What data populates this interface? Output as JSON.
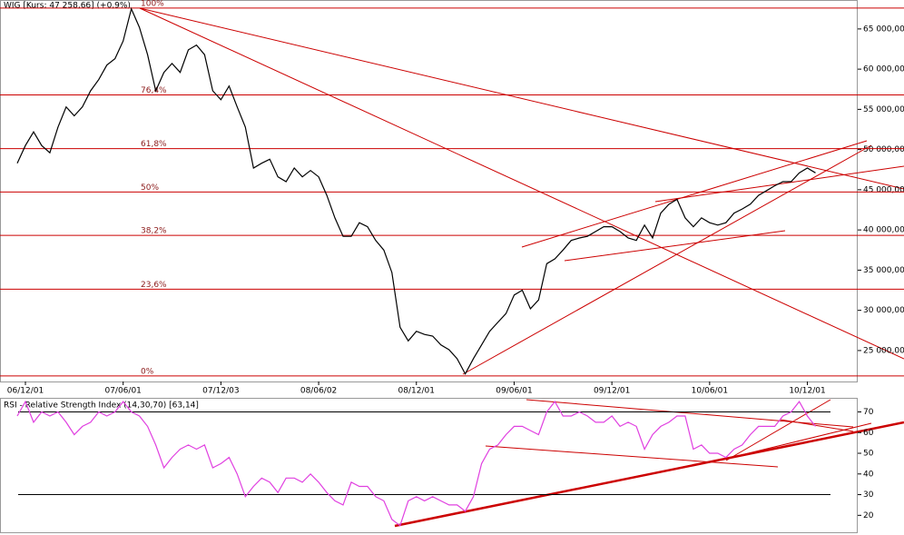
{
  "chart_data": [
    {
      "type": "line",
      "title": "WIG [Kurs: 47 258,66] (+0,9%)",
      "color": "#000000",
      "x": [
        -0.5,
        0,
        0.5,
        1,
        1.5,
        2,
        2.5,
        3,
        3.5,
        4,
        4.5,
        5,
        5.5,
        6,
        6.5,
        7,
        7.5,
        8,
        8.5,
        9,
        9.5,
        10,
        10.5,
        11,
        11.5,
        12,
        12.5,
        13,
        13.5,
        14,
        14.5,
        15,
        15.5,
        16,
        16.5,
        17,
        17.5,
        18,
        18.5,
        19,
        19.5,
        20,
        20.5,
        21,
        21.5,
        22,
        22.5,
        23,
        23.5,
        24,
        24.5,
        25,
        25.5,
        26,
        26.5,
        27,
        27.5,
        28,
        28.5,
        29,
        29.5,
        30,
        30.5,
        31,
        31.5,
        32,
        32.5,
        33,
        33.5,
        34,
        34.5,
        35,
        35.5,
        36,
        36.5,
        37,
        37.5,
        38,
        38.5,
        39,
        39.5,
        40,
        40.5,
        41,
        41.5,
        42,
        42.5,
        43,
        43.5,
        44,
        44.5,
        45,
        45.5,
        46,
        46.5,
        47,
        47.5,
        48,
        48.5
      ],
      "values": [
        48300,
        50500,
        52200,
        50500,
        49600,
        52800,
        55300,
        54200,
        55300,
        57300,
        58700,
        60500,
        61300,
        63500,
        67500,
        65200,
        61800,
        57300,
        59600,
        60700,
        59600,
        62400,
        63000,
        61800,
        57300,
        56200,
        57900,
        55300,
        52800,
        47700,
        48300,
        48800,
        46600,
        46000,
        47700,
        46600,
        47400,
        46600,
        44300,
        41500,
        39200,
        39200,
        40900,
        40400,
        38700,
        37500,
        34700,
        27900,
        26200,
        27400,
        27000,
        26800,
        25700,
        25100,
        24000,
        22100,
        24000,
        25700,
        27400,
        28500,
        29600,
        31900,
        32500,
        30200,
        31300,
        35800,
        36400,
        37500,
        38700,
        39000,
        39200,
        39800,
        40400,
        40400,
        39800,
        39000,
        38700,
        40600,
        39000,
        42100,
        43200,
        43800,
        41500,
        40400,
        41500,
        40900,
        40600,
        40900,
        42100,
        42600,
        43200,
        44300,
        44900,
        45500,
        46000,
        46000,
        47100,
        47700,
        47100
      ],
      "xlim": [
        -1.56,
        51.09
      ],
      "xticks": [
        {
          "value": 0,
          "label": "06/12/01"
        },
        {
          "value": 6,
          "label": "07/06/01"
        },
        {
          "value": 12,
          "label": "07/12/03"
        },
        {
          "value": 18,
          "label": "08/06/02"
        },
        {
          "value": 24,
          "label": "08/12/01"
        },
        {
          "value": 30,
          "label": "09/06/01"
        },
        {
          "value": 36,
          "label": "09/12/01"
        },
        {
          "value": 42,
          "label": "10/06/01"
        },
        {
          "value": 48,
          "label": "10/12/01"
        }
      ],
      "ylim": [
        21150,
        68600
      ],
      "yticks": [
        {
          "value": 25000,
          "label": "25 000,00"
        },
        {
          "value": 30000,
          "label": "30 000,00"
        },
        {
          "value": 35000,
          "label": "35 000,00"
        },
        {
          "value": 40000,
          "label": "40 000,00"
        },
        {
          "value": 45000,
          "label": "45 000,00"
        },
        {
          "value": 50000,
          "label": "50 000,00"
        },
        {
          "value": 55000,
          "label": "55 000,00"
        },
        {
          "value": 60000,
          "label": "60 000,00"
        },
        {
          "value": 65000,
          "label": "65 000,00"
        }
      ],
      "fib_color": "#cc0000",
      "fib_levels": [
        {
          "value": 67600,
          "label": "100%"
        },
        {
          "value": 56800,
          "label": "76,4%"
        },
        {
          "value": 50118,
          "label": "61,8%"
        },
        {
          "value": 44718,
          "label": "50%"
        },
        {
          "value": 39318,
          "label": "38,2%"
        },
        {
          "value": 32636,
          "label": "23,6%"
        },
        {
          "value": 21836,
          "label": "0%"
        }
      ]
    },
    {
      "type": "line",
      "title": "RSI - Relative Strength Index (14,30,70) [63,14]",
      "color": "#e040e0",
      "values": [
        68,
        75,
        65,
        70,
        68,
        70,
        65,
        59,
        63,
        65,
        70,
        68,
        70,
        75,
        70,
        68,
        63,
        54,
        43,
        48,
        52,
        54,
        52,
        54,
        43,
        45,
        48,
        40,
        29,
        34,
        38,
        36,
        31,
        38,
        38,
        36,
        40,
        36,
        31,
        27,
        25,
        36,
        34,
        34,
        29,
        27,
        18,
        15,
        27,
        29,
        27,
        29,
        27,
        25,
        25,
        22,
        29,
        45,
        52,
        54,
        59,
        63,
        63,
        61,
        59,
        70,
        75,
        68,
        68,
        70,
        68,
        65,
        65,
        68,
        63,
        65,
        63,
        52,
        59,
        63,
        65,
        68,
        68,
        52,
        54,
        50,
        50,
        48,
        52,
        54,
        59,
        63,
        63,
        63,
        68,
        70,
        75,
        68,
        63
      ],
      "xlim": [
        -1.56,
        51.09
      ],
      "ylim": [
        11.8,
        76.8
      ],
      "yticks": [
        20,
        30,
        40,
        50,
        60,
        70
      ],
      "bands": [
        70,
        30
      ]
    }
  ]
}
